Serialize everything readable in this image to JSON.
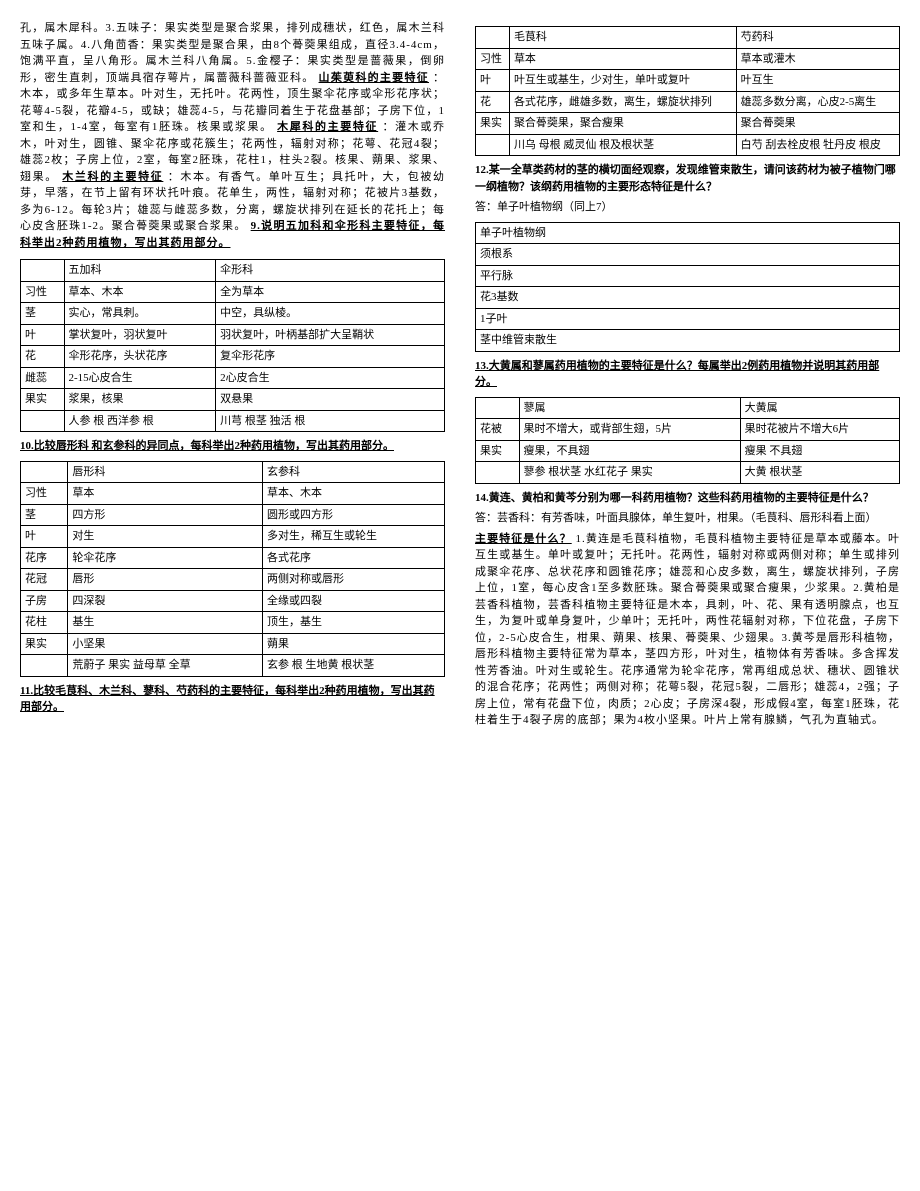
{
  "left": {
    "intro_text": "孔，属木犀科。3.五味子：果实类型是聚合浆果，排列成穗状，红色，属木兰科五味子属。4.八角茴香：果实类型是聚合果，由8个蓇葖果组成，直径3.4-4cm，饱满平直，呈八角形。属木兰科八角属。5.金樱子：果实类型是蔷薇果，倒卵形，密生直刺，顶端具宿存萼片，属蔷薇科蔷薇亚科。",
    "shanzhuyu_title": "山茱萸科的主要特征",
    "shanzhuyu_text": "：木本，或多年生草本。叶对生，无托叶。花两性，顶生聚伞花序或伞形花序状；花萼4-5裂，花瓣4-5，或缺；雄蕊4-5，与花瓣同着生于花盘基部；子房下位，1室和生，1-4室，每室有1胚珠。核果或浆果。",
    "muxi_title": "木犀科的主要特征",
    "muxi_text": "：灌木或乔木，叶对生，圆锥、聚伞花序或花簇生；花两性，辐射对称；花萼、花冠4裂；雄蕊2枚；子房上位，2室，每室2胚珠，花柱1，柱头2裂。核果、蒴果、浆果、翅果。",
    "mulan_title": "木兰科的主要特征",
    "mulan_text": "：木本。有香气。单叶互生；具托叶，大，包被幼芽，早落，在节上留有环状托叶痕。花单生，两性，辐射对称；花被片3基数，多为6-12。每轮3片；雄蕊与雌蕊多数，分离，螺旋状排列在延长的花托上；每心皮含胚珠1-2。聚合蓇葖果或聚合浆果。",
    "q9_title": "9.说明五加科和伞形科主要特征，每科举出2种药用植物，写出其药用部分。",
    "table9": {
      "headers": [
        "",
        "五加科",
        "伞形科"
      ],
      "rows": [
        [
          "习性",
          "草本、木本",
          "全为草本"
        ],
        [
          "茎",
          "实心，常具刺。",
          "中空，具纵棱。"
        ],
        [
          "叶",
          "掌状复叶，羽状复叶",
          "羽状复叶，叶柄基部扩大呈鞘状"
        ],
        [
          "花",
          "伞形花序，头状花序",
          "复伞形花序"
        ],
        [
          "雌蕊",
          "2-15心皮合生",
          "2心皮合生"
        ],
        [
          "果实",
          "浆果，核果",
          "双悬果"
        ],
        [
          "",
          "人参 根 西洋参 根",
          "川芎 根茎 独活 根"
        ]
      ]
    },
    "q10_title": "10.比较唇形科 和玄参科的异同点，每科举出2种药用植物，写出其药用部分。",
    "table10": {
      "headers": [
        "",
        "唇形科",
        "玄参科"
      ],
      "rows": [
        [
          "习性",
          "草本",
          "草本、木本"
        ],
        [
          "茎",
          "四方形",
          "圆形或四方形"
        ],
        [
          "叶",
          "对生",
          "多对生，稀互生或轮生"
        ],
        [
          "花序",
          "轮伞花序",
          "各式花序"
        ],
        [
          "花冠",
          "唇形",
          "两侧对称或唇形"
        ],
        [
          "子房",
          "四深裂",
          "全缘或四裂"
        ],
        [
          "花柱",
          "基生",
          "顶生，基生"
        ],
        [
          "果实",
          "小坚果",
          "蒴果"
        ],
        [
          "",
          "荒蔚子 果实 益母草 全草",
          "玄参 根 生地黄 根状茎"
        ]
      ]
    },
    "q11_title": "11.比较毛茛科、木兰科、蓼科、芍药科的主要特征，每科举出2种药用植物，写出其药用部分。"
  },
  "right": {
    "table11": {
      "headers": [
        "",
        "毛茛科",
        "芍药科"
      ],
      "rows": [
        [
          "习性",
          "草本",
          "草本或灌木"
        ],
        [
          "叶",
          "叶互生或基生，少对生，单叶或复叶",
          "叶互生"
        ],
        [
          "花",
          "各式花序，雌雄多数，离生，螺旋状排列",
          "雄蕊多数分离，心皮2-5离生"
        ],
        [
          "果实",
          "聚合蓇葖果，聚合瘦果",
          "聚合蓇葖果"
        ],
        [
          "",
          "川乌 母根 威灵仙 根及根状茎",
          "白芍 刮去栓皮根 牡丹皮 根皮"
        ]
      ]
    },
    "q12_title": "12.某一全草类药材的茎的横切面经观察，发现维管束散生，请问该药材为被子植物门哪一纲植物？该纲药用植物的主要形态特征是什么？",
    "q12_answer": "答：单子叶植物纲（同上7）",
    "table12": {
      "rows": [
        [
          "单子叶植物纲"
        ],
        [
          "须根系"
        ],
        [
          "平行脉"
        ],
        [
          "花3基数"
        ],
        [
          "1子叶"
        ],
        [
          "茎中维管束散生"
        ]
      ]
    },
    "q13_title": "13.大黄属和蓼属药用植物的主要特征是什么？每属举出2例药用植物并说明其药用部分。",
    "table13": {
      "headers": [
        "",
        "蓼属",
        "大黄属"
      ],
      "rows": [
        [
          "花被",
          "果时不增大，或背部生翅，5片",
          "果时花被片不增大6片"
        ],
        [
          "果实",
          "瘦果，不具翅",
          "瘦果 不具翅"
        ],
        [
          "",
          "蓼参 根状茎 水红花子 果实",
          "大黄 根状茎"
        ]
      ]
    },
    "q14_title": "14.黄连、黄柏和黄芩分别为哪一科药用植物？这些科药用植物的主要特征是什么？",
    "q14_answer": "答：芸香科：有芳香味，叶面具腺体，单生复叶，柑果。（毛茛科、唇形科看上面）",
    "main_feature_title": "主要特征是什么？",
    "main_feature_text": "1.黄连是毛茛科植物，毛茛科植物主要特征是草本或藤本。叶互生或基生。单叶或复叶；无托叶。花两性，辐射对称或两侧对称；单生或排列成聚伞花序、总状花序和圆锥花序；雄蕊和心皮多数，离生，螺旋状排列，子房上位，1室，每心皮含1至多数胚珠。聚合蓇葖果或聚合瘦果，少浆果。2.黄柏是芸香科植物，芸香科植物主要特征是木本，具刺，叶、花、果有透明腺点，也互生，为复叶或单身复叶，少单叶；无托叶，两性花辐射对称，下位花盘，子房下位，2-5心皮合生，柑果、蒴果、核果、蓇葖果、少翅果。3.黄芩是唇形科植物，唇形科植物主要特征常为草本，茎四方形，叶对生，植物体有芳香味。多含挥发性芳香油。叶对生或轮生。花序通常为轮伞花序，常再组成总状、穗状、圆锥状的混合花序；花两性；两侧对称；花萼5裂，花冠5裂，二唇形；雄蕊4，2强；子房上位，常有花盘下位，肉质；2心皮；子房深4裂，形成假4室，每室1胚珠，花柱着生于4裂子房的底部；果为4枚小坚果。叶片上常有腺鳞，气孔为直轴式。"
  }
}
